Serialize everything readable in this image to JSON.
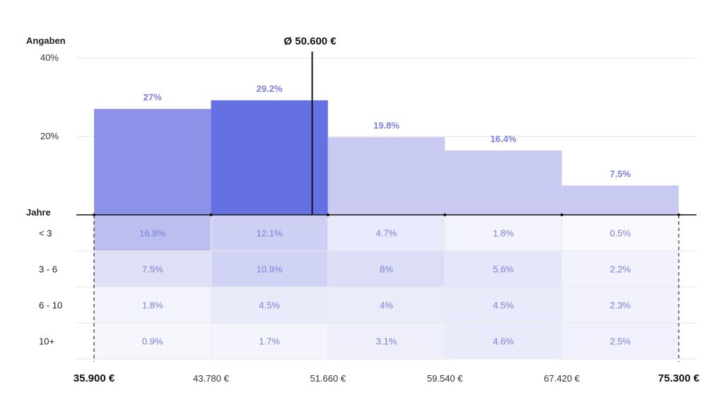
{
  "chart_data": {
    "type": "bar",
    "ylabel": "Angaben",
    "y_ticks": [
      "40%",
      "20%"
    ],
    "y_tick_values": [
      40,
      20
    ],
    "ylim": [
      0,
      40
    ],
    "categories": [
      "35.900 € – 43.780 €",
      "43.780 € – 51.660 €",
      "51.660 € – 59.540 €",
      "59.540 € – 67.420 €",
      "67.420 € – 75.300 €"
    ],
    "values": [
      27,
      29.2,
      19.8,
      16.4,
      7.5
    ],
    "value_labels": [
      "27%",
      "29.2%",
      "19.8%",
      "16.4%",
      "7.5%"
    ],
    "x_ticks": [
      "35.900 €",
      "43.780 €",
      "51.660 €",
      "59.540 €",
      "67.420 €",
      "75.300 €"
    ],
    "x_tick_values": [
      35900,
      43780,
      51660,
      59540,
      67420,
      75300
    ],
    "x_tick_emphasis": [
      true,
      false,
      false,
      false,
      false,
      true
    ],
    "average": {
      "label": "Ø 50.600 €",
      "value": 50600
    },
    "table": {
      "title": "Jahre",
      "rows": [
        "< 3",
        "3 - 6",
        "6 - 10",
        "10+"
      ],
      "values": [
        [
          16.8,
          12.1,
          4.7,
          1.8,
          0.5
        ],
        [
          7.5,
          10.9,
          8,
          5.6,
          2.2
        ],
        [
          1.8,
          4.5,
          4,
          4.5,
          2.3
        ],
        [
          0.9,
          1.7,
          3.1,
          4.6,
          2.5
        ]
      ],
      "labels": [
        [
          "16.8%",
          "12.1%",
          "4.7%",
          "1.8%",
          "0.5%"
        ],
        [
          "7.5%",
          "10.9%",
          "8%",
          "5.6%",
          "2.2%"
        ],
        [
          "1.8%",
          "4.5%",
          "4%",
          "4.5%",
          "2.3%"
        ],
        [
          "0.9%",
          "1.7%",
          "3.1%",
          "4.6%",
          "2.5%"
        ]
      ]
    },
    "colors": {
      "bar_light": "#c8caf2",
      "bar_mid": "#8c92e8",
      "bar_highlight": "#6570e3",
      "label": "#7b80dc",
      "axis": "#111111",
      "grid": "#e6e6e6"
    },
    "grid": true
  }
}
